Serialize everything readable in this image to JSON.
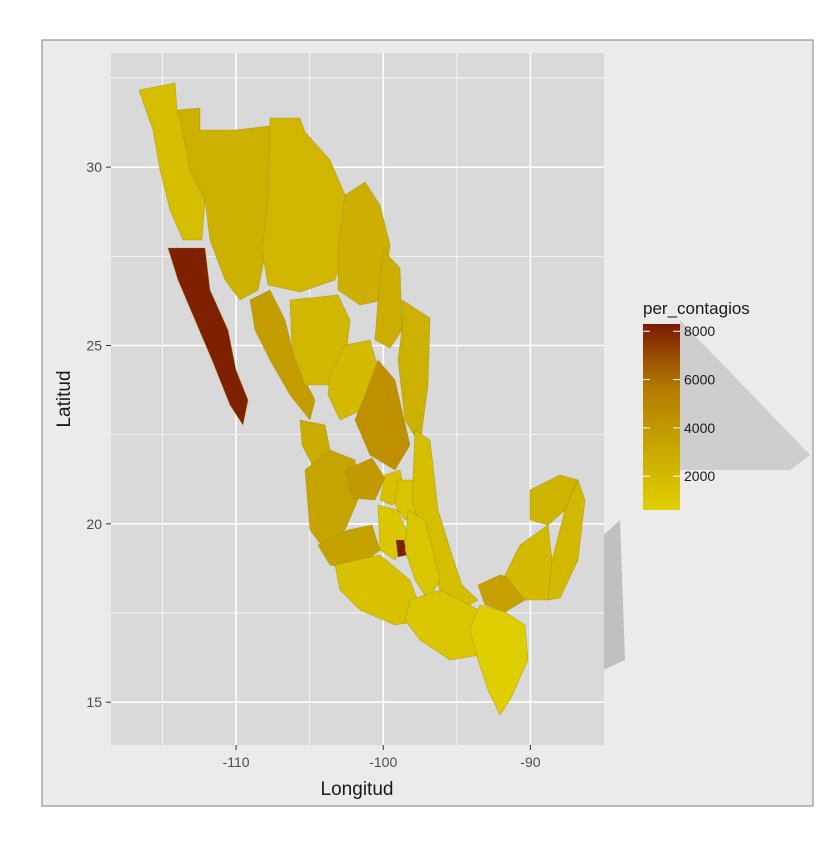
{
  "chart_data": {
    "type": "choropleth",
    "xlabel": "Longitud",
    "ylabel": "Latitud",
    "xlim": [
      -118.5,
      -85.0
    ],
    "ylim": [
      13.8,
      33.2
    ],
    "x_ticks": [
      -110,
      -100,
      -90
    ],
    "x_tick_labels": [
      "-110",
      "-100",
      "-90"
    ],
    "y_ticks": [
      15,
      20,
      25,
      30
    ],
    "y_tick_labels": [
      "15",
      "20",
      "25",
      "30"
    ],
    "grid": true,
    "legend": {
      "title": "per_contagios",
      "placement": "right",
      "min": 600,
      "max": 8300,
      "ticks": [
        2000,
        4000,
        6000,
        8000
      ],
      "tick_labels": [
        "2000",
        "4000",
        "6000",
        "8000"
      ],
      "colors": [
        "#e0d000",
        "#c8a800",
        "#b47a00",
        "#7a1a00"
      ]
    },
    "regions": [
      {
        "id": "baja-california-sur",
        "value": 8100
      },
      {
        "id": "ciudad-de-mexico",
        "value": 8200
      },
      {
        "id": "san-luis-potosi",
        "value": 4500
      },
      {
        "id": "guanajuato",
        "value": 4000
      },
      {
        "id": "sinaloa",
        "value": 3800
      },
      {
        "id": "jalisco",
        "value": 3400
      },
      {
        "id": "michoacan",
        "value": 3500
      },
      {
        "id": "tabasco",
        "value": 3600
      },
      {
        "id": "nayarit",
        "value": 3000
      },
      {
        "id": "nuevo-leon",
        "value": 2800
      },
      {
        "id": "coahuila",
        "value": 2700
      },
      {
        "id": "sonora",
        "value": 2600
      },
      {
        "id": "tamaulipas",
        "value": 2600
      },
      {
        "id": "yucatan",
        "value": 2400
      },
      {
        "id": "chihuahua",
        "value": 2300
      },
      {
        "id": "durango",
        "value": 2200
      },
      {
        "id": "zacatecas",
        "value": 2000
      },
      {
        "id": "campeche",
        "value": 2000
      },
      {
        "id": "quintana-roo",
        "value": 2100
      },
      {
        "id": "baja-california",
        "value": 1800
      },
      {
        "id": "veracruz",
        "value": 1800
      },
      {
        "id": "guerrero",
        "value": 1500
      },
      {
        "id": "oaxaca",
        "value": 1300
      },
      {
        "id": "queretaro",
        "value": 1600
      },
      {
        "id": "hidalgo",
        "value": 1400
      },
      {
        "id": "mexico",
        "value": 1200
      },
      {
        "id": "puebla",
        "value": 1300
      },
      {
        "id": "chiapas",
        "value": 700
      }
    ]
  }
}
